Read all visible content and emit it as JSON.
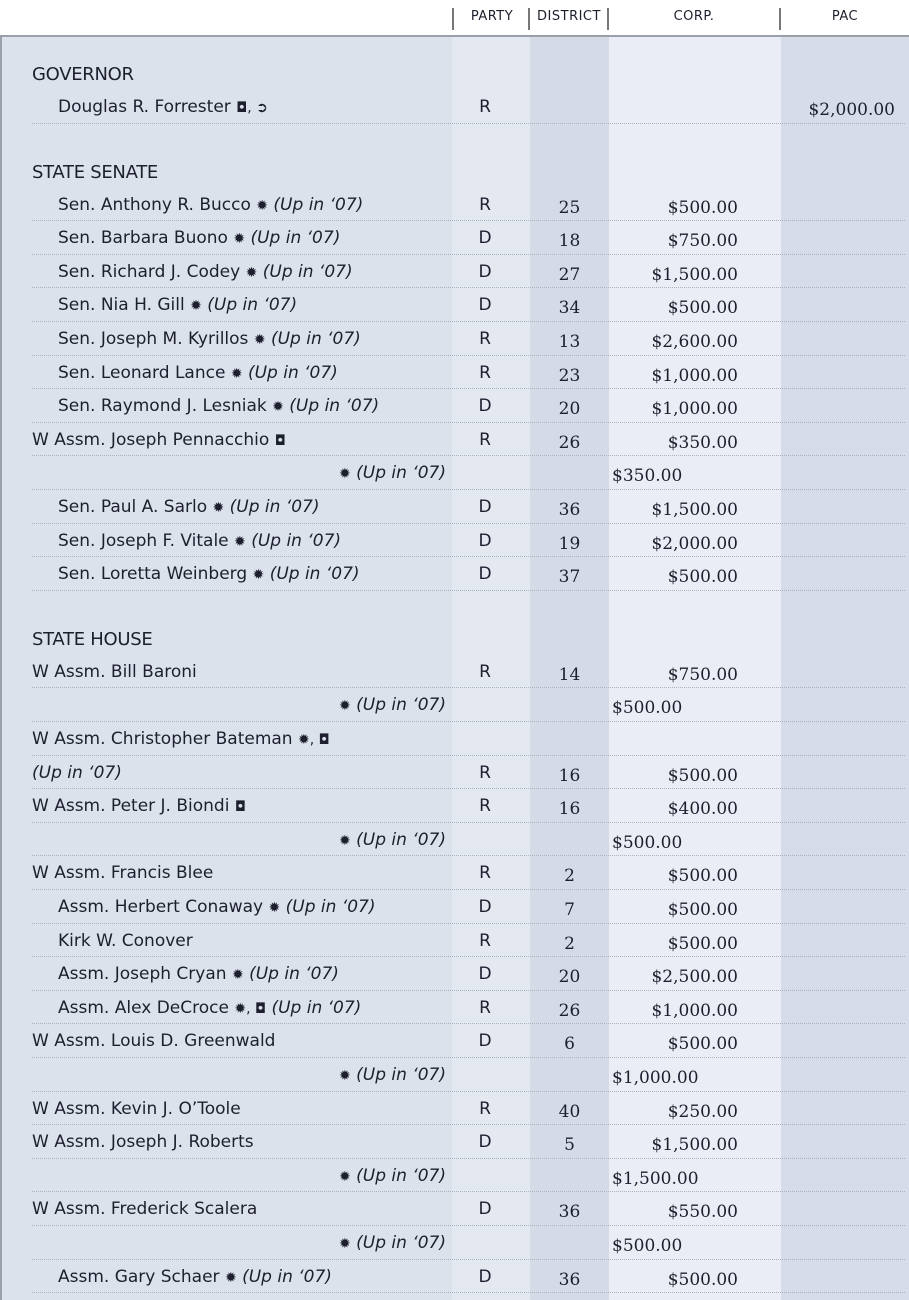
{
  "header": {
    "columns": [
      "PARTY",
      "DISTRICT",
      "CORP.",
      "PAC"
    ]
  },
  "sections": [
    {
      "title": "GOVERNOR",
      "rows": [
        {
          "name": "Douglas R. Forrester",
          "marks": "◘, ➲",
          "party": "R",
          "pac": "$2,000.00"
        }
      ]
    },
    {
      "title": "STATE SENATE",
      "rows": [
        {
          "name": "Sen. Anthony R. Bucco",
          "marks": "✹",
          "note": "(Up in ‘07)",
          "party": "R",
          "district": 25,
          "corp": "$500.00"
        },
        {
          "name": "Sen. Barbara Buono",
          "marks": "✹",
          "note": "(Up in ‘07)",
          "party": "D",
          "district": 18,
          "corp": "$750.00"
        },
        {
          "name": "Sen. Richard J. Codey",
          "marks": "✹",
          "note": "(Up in ‘07)",
          "party": "D",
          "district": 27,
          "corp": "$1,500.00"
        },
        {
          "name": "Sen. Nia H. Gill",
          "marks": "✹",
          "note": "(Up in ‘07)",
          "party": "D",
          "district": 34,
          "corp": "$500.00"
        },
        {
          "name": "Sen. Joseph M. Kyrillos",
          "marks": "✹",
          "note": "(Up in ‘07)",
          "party": "R",
          "district": 13,
          "corp": "$2,600.00"
        },
        {
          "name": "Sen. Leonard Lance",
          "marks": "✹",
          "note": "(Up in ‘07)",
          "party": "R",
          "district": 23,
          "corp": "$1,000.00"
        },
        {
          "name": "Sen. Raymond J. Lesniak",
          "marks": "✹",
          "note": "(Up in ‘07)",
          "party": "D",
          "district": 20,
          "corp": "$1,000.00"
        },
        {
          "name": "W Assm. Joseph Pennacchio",
          "marks": "◘",
          "party": "R",
          "district": 26,
          "corp": "$350.00"
        },
        {
          "marks": "✹",
          "note": "(Up in ‘07)",
          "corp": "$350.00"
        },
        {
          "name": "Sen. Paul A. Sarlo",
          "marks": "✹",
          "note": "(Up in ‘07)",
          "party": "D",
          "district": 36,
          "corp": "$1,500.00"
        },
        {
          "name": "Sen. Joseph F. Vitale",
          "marks": "✹",
          "note": "(Up in ‘07)",
          "party": "D",
          "district": 19,
          "corp": "$2,000.00"
        },
        {
          "name": "Sen. Loretta Weinberg",
          "marks": "✹",
          "note": "(Up in ‘07)",
          "party": "D",
          "district": 37,
          "corp": "$500.00"
        }
      ]
    },
    {
      "title": "STATE HOUSE",
      "rows": [
        {
          "name": "W Assm. Bill Baroni",
          "party": "R",
          "district": 14,
          "corp": "$750.00"
        },
        {
          "marks": "✹",
          "note": "(Up in ‘07)",
          "corp": "$500.00"
        },
        {
          "name": "W Assm. Christopher Bateman",
          "marks": "✹, ◘"
        },
        {
          "note": "(Up in ‘07)",
          "party": "R",
          "district": 16,
          "corp": "$500.00"
        },
        {
          "name": "W Assm. Peter J. Biondi",
          "marks": "◘",
          "party": "R",
          "district": 16,
          "corp": "$400.00"
        },
        {
          "marks": "✹",
          "note": "(Up in ‘07)",
          "corp": "$500.00"
        },
        {
          "name": "W Assm. Francis Blee",
          "party": "R",
          "district": 2,
          "corp": "$500.00"
        },
        {
          "name": "Assm. Herbert Conaway",
          "marks": "✹",
          "note": "(Up in ‘07)",
          "party": "D",
          "district": 7,
          "corp": "$500.00"
        },
        {
          "name": "Kirk W. Conover",
          "party": "R",
          "district": 2,
          "corp": "$500.00"
        },
        {
          "name": "Assm. Joseph Cryan",
          "marks": "✹",
          "note": "(Up in ‘07)",
          "party": "D",
          "district": 20,
          "corp": "$2,500.00"
        },
        {
          "name": "Assm. Alex DeCroce",
          "marks": "✹, ◘",
          "note": "(Up in ‘07)",
          "party": "R",
          "district": 26,
          "corp": "$1,000.00"
        },
        {
          "name": "W Assm. Louis D. Greenwald",
          "party": "D",
          "district": 6,
          "corp": "$500.00"
        },
        {
          "marks": "✹",
          "note": "(Up in ‘07)",
          "corp": "$1,000.00"
        },
        {
          "name": "W Assm. Kevin J. O’Toole",
          "party": "R",
          "district": 40,
          "corp": "$250.00"
        },
        {
          "name": "W Assm. Joseph J. Roberts",
          "party": "D",
          "district": 5,
          "corp": "$1,500.00"
        },
        {
          "marks": "✹",
          "note": "(Up in ‘07)",
          "corp": "$1,500.00"
        },
        {
          "name": "W Assm. Frederick Scalera",
          "party": "D",
          "district": 36,
          "corp": "$550.00"
        },
        {
          "marks": "✹",
          "note": "(Up in ‘07)",
          "corp": "$500.00"
        },
        {
          "name": "Assm. Gary Schaer",
          "marks": "✹",
          "note": "(Up in ‘07)",
          "party": "D",
          "district": 36,
          "corp": "$500.00"
        }
      ]
    }
  ]
}
